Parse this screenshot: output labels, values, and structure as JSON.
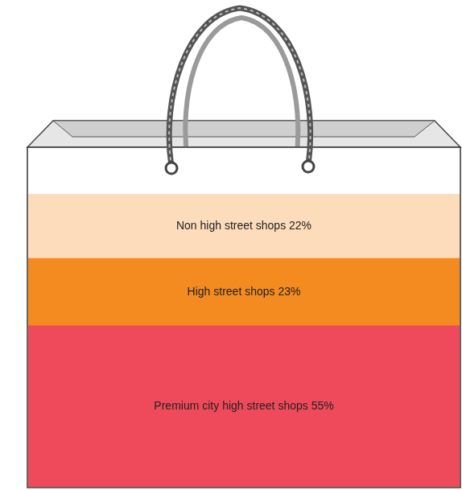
{
  "chart_data": {
    "type": "bar",
    "stacked": true,
    "categories": [
      null
    ],
    "series": [
      {
        "name": "Premium city high street shops",
        "color": "#ef4a5b",
        "values": [
          55
        ],
        "value_labels": [
          "55%"
        ]
      },
      {
        "name": "High street shops",
        "color": "#f38b20",
        "values": [
          23
        ],
        "value_labels": [
          "23%"
        ]
      },
      {
        "name": "Non high street shops",
        "color": "#fddcbc",
        "values": [
          22
        ],
        "value_labels": [
          "22%"
        ]
      }
    ],
    "ylim": [
      0,
      100
    ],
    "grid": false,
    "tick_labels": false,
    "data_labels": true
  }
}
